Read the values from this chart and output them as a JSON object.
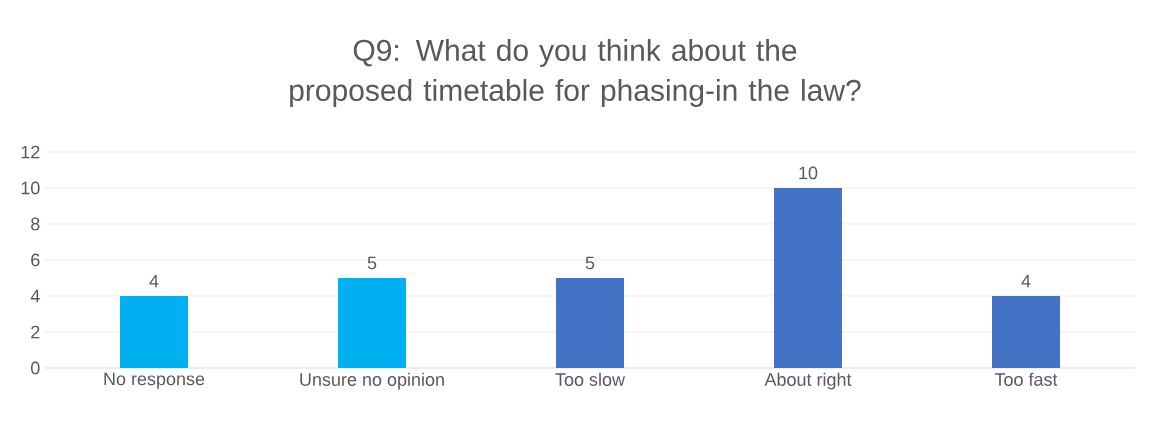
{
  "chart_data": {
    "type": "bar",
    "title": "Q9: What do you think about the proposed timetable for phasing-in the law?",
    "categories": [
      "No response",
      "Unsure no opinion",
      "Too slow",
      "About right",
      "Too fast"
    ],
    "values": [
      4,
      5,
      5,
      10,
      4
    ],
    "colors": [
      "#00b0f0",
      "#00b0f0",
      "#4472c4",
      "#4472c4",
      "#4472c4"
    ],
    "ylim": [
      0,
      12
    ],
    "yticks": [
      0,
      2,
      4,
      6,
      8,
      10,
      12
    ],
    "grid": "y",
    "data_labels": true
  }
}
